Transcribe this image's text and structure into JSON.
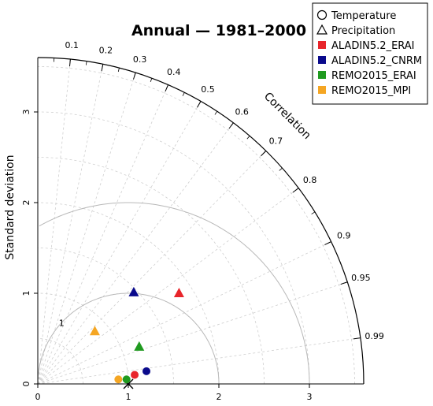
{
  "chart_data": {
    "type": "scatter",
    "subtype": "taylor-diagram",
    "title": "Annual — 1981–2000",
    "ylabel": "Standard deviation",
    "arc_label": "Correlation",
    "std_ticks": [
      "0",
      "1",
      "2",
      "3"
    ],
    "std_range": [
      0,
      3.6
    ],
    "correlation_ticks": [
      "0.1",
      "0.2",
      "0.3",
      "0.4",
      "0.5",
      "0.6",
      "0.7",
      "0.8",
      "0.9",
      "0.95",
      "0.99"
    ],
    "rms_contours": [
      "1",
      "2"
    ],
    "reference_std": 1.0,
    "grid": true,
    "legend_position": "top-right",
    "legend": [
      {
        "label": "Temperature",
        "kind": "marker",
        "shape": "circle"
      },
      {
        "label": "Precipitation",
        "kind": "marker",
        "shape": "triangle"
      },
      {
        "label": "ALADIN5.2_ERAI",
        "kind": "color",
        "color": "#e8252b"
      },
      {
        "label": "ALADIN5.2_CNRM",
        "kind": "color",
        "color": "#0a0a8c"
      },
      {
        "label": "REMO2015_ERAI",
        "kind": "color",
        "color": "#1f9a1f"
      },
      {
        "label": "REMO2015_MPI",
        "kind": "color",
        "color": "#f5a623"
      }
    ],
    "series": [
      {
        "name": "ALADIN5.2_ERAI",
        "color": "#e8252b",
        "points": [
          {
            "variable": "Temperature",
            "shape": "circle",
            "x": 1.07,
            "y": 0.1
          },
          {
            "variable": "Precipitation",
            "shape": "triangle",
            "x": 1.56,
            "y": 1.0
          }
        ]
      },
      {
        "name": "ALADIN5.2_CNRM",
        "color": "#0a0a8c",
        "points": [
          {
            "variable": "Temperature",
            "shape": "circle",
            "x": 1.2,
            "y": 0.14
          },
          {
            "variable": "Precipitation",
            "shape": "triangle",
            "x": 1.06,
            "y": 1.01
          }
        ]
      },
      {
        "name": "REMO2015_ERAI",
        "color": "#1f9a1f",
        "points": [
          {
            "variable": "Temperature",
            "shape": "circle",
            "x": 0.98,
            "y": 0.05
          },
          {
            "variable": "Precipitation",
            "shape": "triangle",
            "x": 1.12,
            "y": 0.41
          }
        ]
      },
      {
        "name": "REMO2015_MPI",
        "color": "#f5a623",
        "points": [
          {
            "variable": "Temperature",
            "shape": "circle",
            "x": 0.89,
            "y": 0.05
          },
          {
            "variable": "Precipitation",
            "shape": "triangle",
            "x": 0.63,
            "y": 0.58
          }
        ]
      }
    ]
  }
}
